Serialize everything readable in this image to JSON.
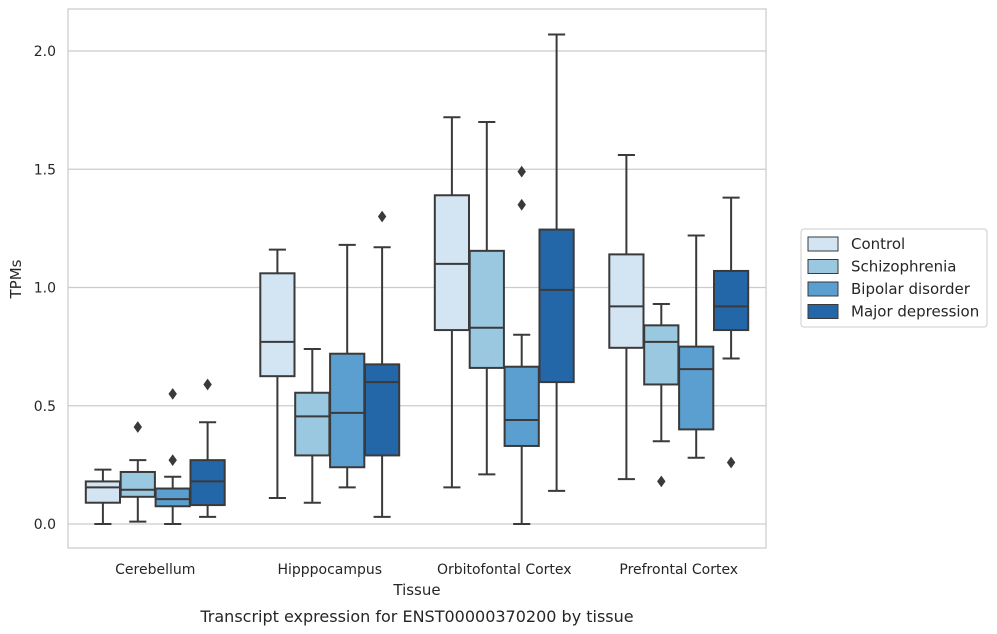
{
  "caption": "Transcript expression for ENST00000370200 by tissue",
  "chart_data": {
    "type": "box",
    "xlabel": "Tissue",
    "ylabel": "TPMs",
    "ylim": [
      -0.1,
      2.18
    ],
    "yticks": [
      0.0,
      0.5,
      1.0,
      1.5,
      2.0
    ],
    "ytick_labels": [
      "0.0",
      "0.5",
      "1.0",
      "1.5",
      "2.0"
    ],
    "grid": "horizontal",
    "legend_position": "right",
    "categories": [
      "Cerebellum",
      "Hipppocampus",
      "Orbitofontal Cortex",
      "Prefrontal Cortex"
    ],
    "series": [
      {
        "name": "Control",
        "color": "#d3e4f3",
        "boxes": [
          {
            "whislo": 0.0,
            "q1": 0.09,
            "med": 0.155,
            "q3": 0.18,
            "whishi": 0.23,
            "fliers": []
          },
          {
            "whislo": 0.11,
            "q1": 0.625,
            "med": 0.77,
            "q3": 1.06,
            "whishi": 1.16,
            "fliers": []
          },
          {
            "whislo": 0.155,
            "q1": 0.82,
            "med": 1.1,
            "q3": 1.39,
            "whishi": 1.72,
            "fliers": []
          },
          {
            "whislo": 0.19,
            "q1": 0.745,
            "med": 0.92,
            "q3": 1.14,
            "whishi": 1.56,
            "fliers": []
          }
        ]
      },
      {
        "name": "Schizophrenia",
        "color": "#9ac8e0",
        "boxes": [
          {
            "whislo": 0.01,
            "q1": 0.115,
            "med": 0.145,
            "q3": 0.22,
            "whishi": 0.27,
            "fliers": [
              0.41
            ]
          },
          {
            "whislo": 0.09,
            "q1": 0.29,
            "med": 0.455,
            "q3": 0.555,
            "whishi": 0.74,
            "fliers": []
          },
          {
            "whislo": 0.21,
            "q1": 0.66,
            "med": 0.83,
            "q3": 1.155,
            "whishi": 1.7,
            "fliers": []
          },
          {
            "whislo": 0.35,
            "q1": 0.59,
            "med": 0.77,
            "q3": 0.84,
            "whishi": 0.93,
            "fliers": [
              0.18
            ]
          }
        ]
      },
      {
        "name": "Bipolar disorder",
        "color": "#5a9fcf",
        "boxes": [
          {
            "whislo": 0.0,
            "q1": 0.075,
            "med": 0.105,
            "q3": 0.15,
            "whishi": 0.2,
            "fliers": [
              0.55,
              0.27
            ]
          },
          {
            "whislo": 0.155,
            "q1": 0.24,
            "med": 0.47,
            "q3": 0.72,
            "whishi": 1.18,
            "fliers": []
          },
          {
            "whislo": 0.0,
            "q1": 0.33,
            "med": 0.44,
            "q3": 0.665,
            "whishi": 0.8,
            "fliers": [
              1.49,
              1.35
            ]
          },
          {
            "whislo": 0.28,
            "q1": 0.4,
            "med": 0.655,
            "q3": 0.75,
            "whishi": 1.22,
            "fliers": []
          }
        ]
      },
      {
        "name": "Major depression",
        "color": "#2467a9",
        "boxes": [
          {
            "whislo": 0.03,
            "q1": 0.08,
            "med": 0.18,
            "q3": 0.27,
            "whishi": 0.43,
            "fliers": [
              0.59
            ]
          },
          {
            "whislo": 0.03,
            "q1": 0.29,
            "med": 0.6,
            "q3": 0.675,
            "whishi": 1.17,
            "fliers": [
              1.3
            ]
          },
          {
            "whislo": 0.14,
            "q1": 0.6,
            "med": 0.99,
            "q3": 1.245,
            "whishi": 2.07,
            "fliers": []
          },
          {
            "whislo": 0.7,
            "q1": 0.82,
            "med": 0.92,
            "q3": 1.07,
            "whishi": 1.38,
            "fliers": [
              0.26
            ]
          }
        ]
      }
    ]
  }
}
